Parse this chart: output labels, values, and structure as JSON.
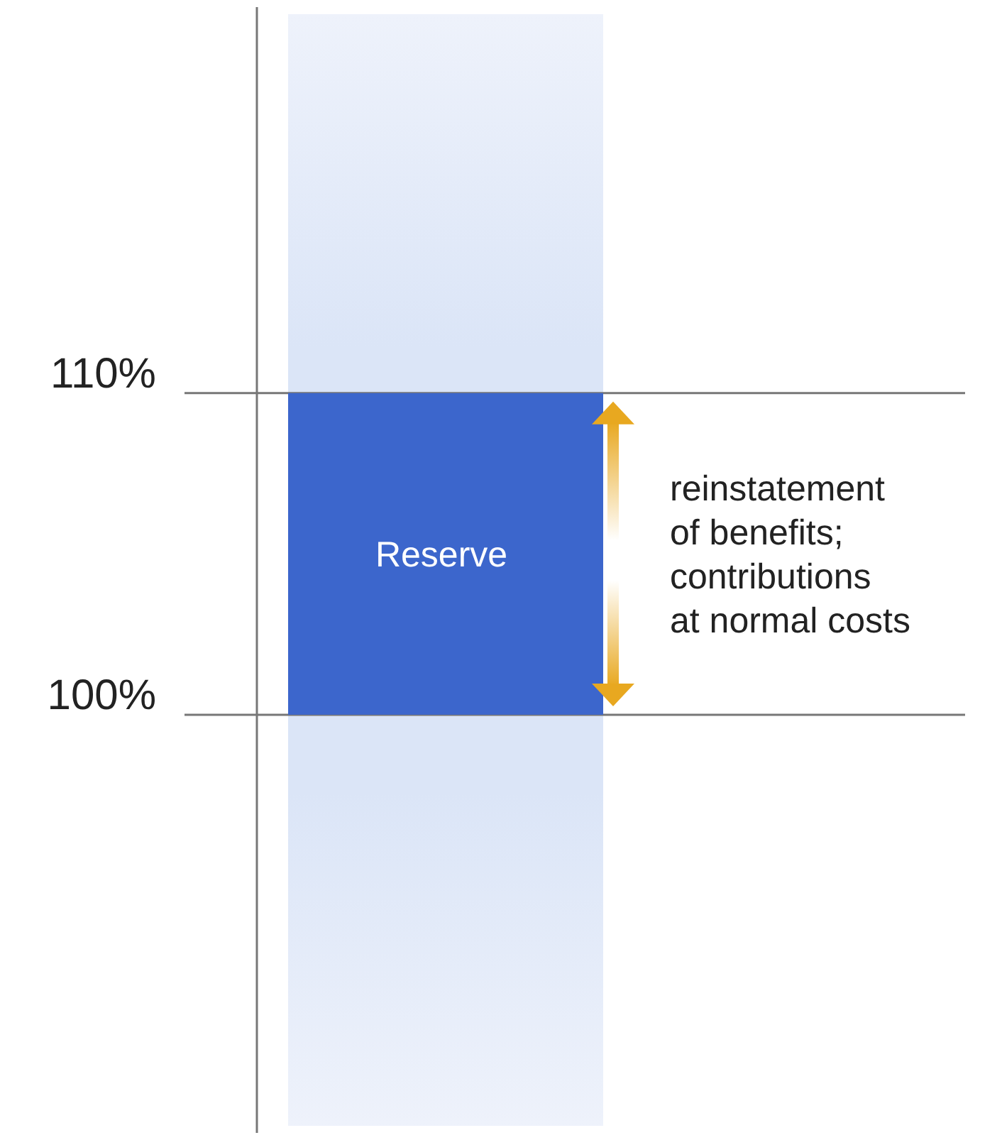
{
  "chart_data": {
    "type": "bar",
    "categories": [
      null
    ],
    "base": [
      100
    ],
    "values": [
      10
    ],
    "color": "#3c66cc",
    "ylim": [
      87,
      122
    ],
    "yticks": [
      {
        "value": 100,
        "label": "100%"
      },
      {
        "value": 110,
        "label": "110%"
      }
    ],
    "grid": "y",
    "tick_labels": "y",
    "annotations": [
      "Reserve",
      "reinstatement\nof benefits;\ncontributions\nat normal costs"
    ]
  }
}
